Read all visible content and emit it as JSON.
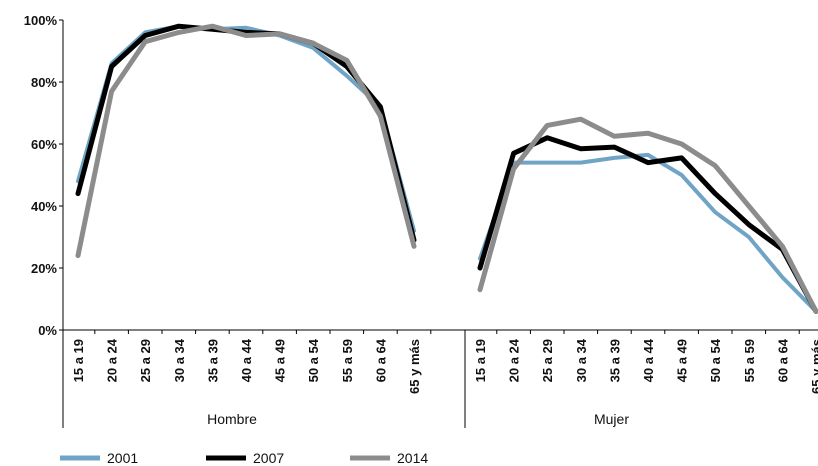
{
  "chart_data": {
    "type": "line",
    "title": "",
    "xlabel": "",
    "ylabel": "",
    "ylim": [
      0,
      100
    ],
    "y_ticks": [
      "0%",
      "20%",
      "40%",
      "60%",
      "80%",
      "100%"
    ],
    "categories": [
      "15 a 19",
      "20 a 24",
      "25 a 29",
      "30 a 34",
      "35 a 39",
      "40 a 44",
      "45 a 49",
      "50 a 54",
      "55 a 59",
      "60 a 64",
      "65 y más"
    ],
    "groups": [
      {
        "label": "Hombre",
        "series": [
          {
            "name": "2001",
            "color": "#6fa4c6",
            "width": 4,
            "values": [
              48,
              86,
              96,
              98,
              97,
              97.5,
              95,
              91,
              82,
              72,
              32
            ]
          },
          {
            "name": "2007",
            "color": "#000000",
            "width": 5,
            "values": [
              44,
              85,
              95,
              98,
              97,
              96,
              95.5,
              92.5,
              85,
              72,
              29
            ]
          },
          {
            "name": "2014",
            "color": "#8c8c8c",
            "width": 5,
            "values": [
              24,
              77,
              93,
              96,
              98,
              95,
              95.5,
              92.5,
              87,
              69,
              27
            ]
          }
        ]
      },
      {
        "label": "Mujer",
        "series": [
          {
            "name": "2001",
            "color": "#6fa4c6",
            "width": 4,
            "values": [
              23,
              54,
              54,
              54,
              55.5,
              56.5,
              50,
              38,
              30,
              17,
              6
            ]
          },
          {
            "name": "2007",
            "color": "#000000",
            "width": 5,
            "values": [
              20,
              57,
              62,
              58.5,
              59,
              54,
              55.5,
              44,
              34,
              26,
              6
            ]
          },
          {
            "name": "2014",
            "color": "#8c8c8c",
            "width": 5,
            "values": [
              13,
              52,
              66,
              68,
              62.5,
              63.5,
              60,
              53,
              40,
              27,
              6
            ]
          }
        ]
      }
    ],
    "legend": [
      {
        "name": "2001",
        "color": "#6fa4c6"
      },
      {
        "name": "2007",
        "color": "#000000"
      },
      {
        "name": "2014",
        "color": "#8c8c8c"
      }
    ],
    "legend_position": "bottom-left",
    "grid": false
  }
}
